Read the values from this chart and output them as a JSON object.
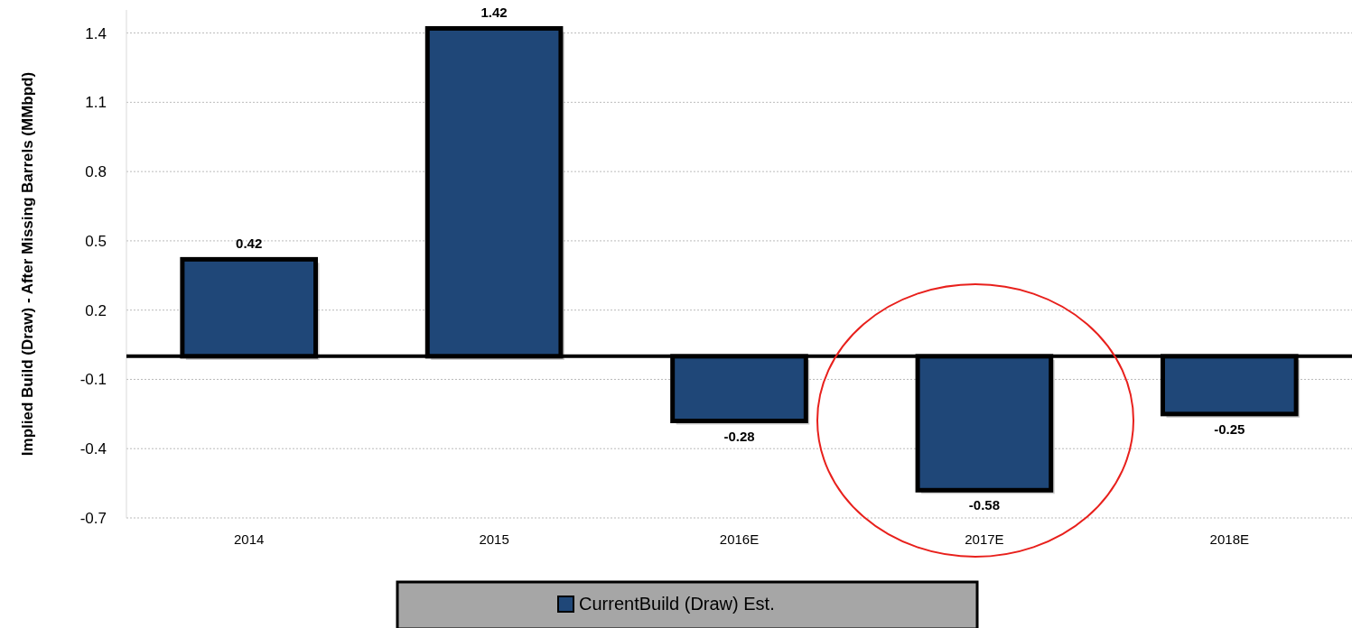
{
  "chart_data": {
    "type": "bar",
    "ylabel": "Implied Build (Draw) - After Missing Barrels (MMbpd)",
    "categories": [
      "2014",
      "2015",
      "2016E",
      "2017E",
      "2018E"
    ],
    "series": [
      {
        "name": "CurrentBuild (Draw) Est.",
        "color": "#1f4778",
        "values": [
          0.42,
          1.42,
          -0.28,
          -0.58,
          -0.25
        ]
      }
    ],
    "ylim": [
      -0.7,
      1.5
    ],
    "yticks": [
      1.4,
      1.1,
      0.8,
      0.5,
      0.2,
      -0.1,
      -0.4,
      -0.7
    ],
    "grid": "y",
    "legend": "bottom",
    "data_labels": true
  }
}
